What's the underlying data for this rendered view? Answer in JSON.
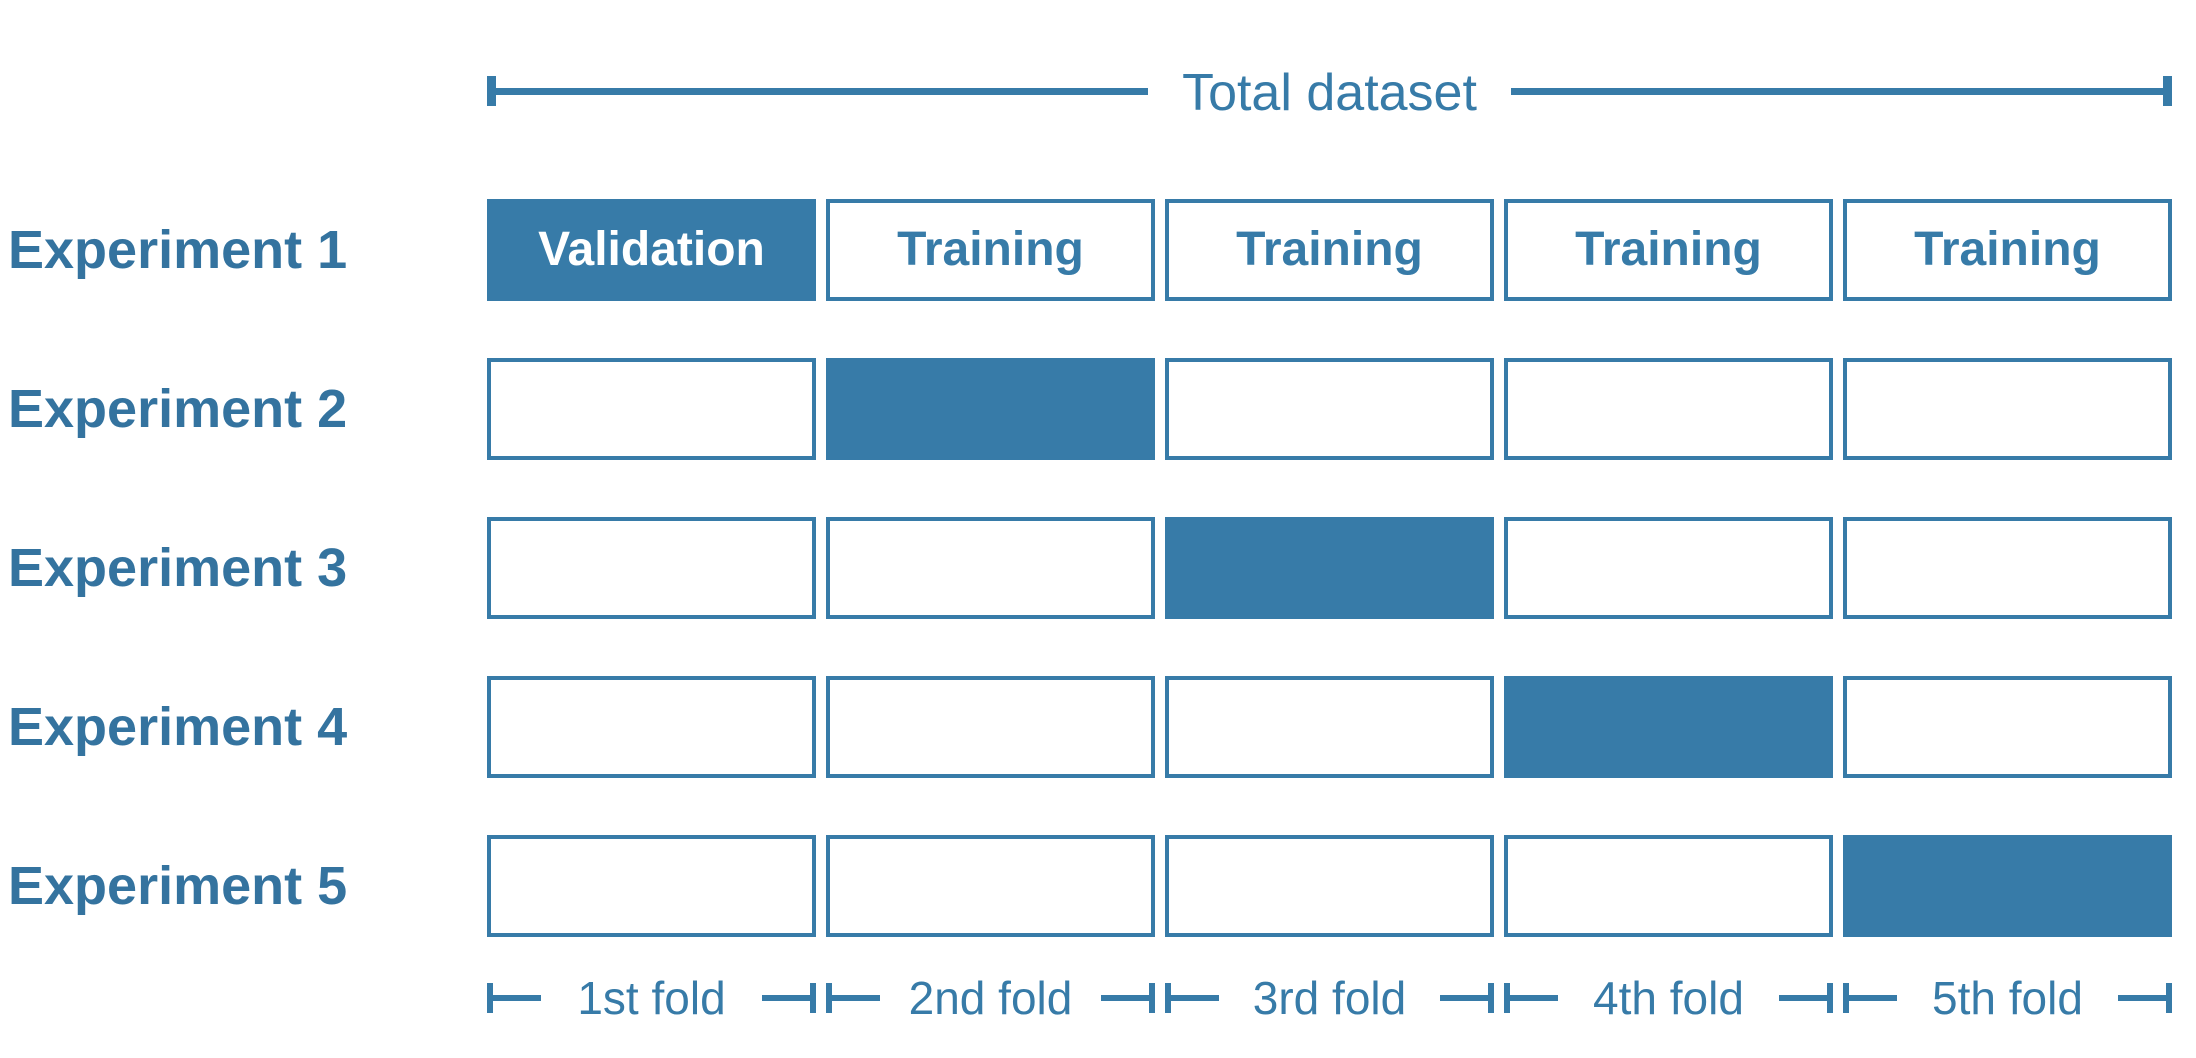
{
  "colors": {
    "accent": "#377BA8",
    "experiment_label_text": "#34739F",
    "validation_cell_text": "#FFFFFF",
    "background": "#FFFFFF"
  },
  "total_dataset": {
    "label": "Total dataset"
  },
  "experiments": [
    {
      "label": "Experiment 1",
      "cells": [
        {
          "state": "filled",
          "label": "Validation"
        },
        {
          "state": "empty",
          "label": "Training"
        },
        {
          "state": "empty",
          "label": "Training"
        },
        {
          "state": "empty",
          "label": "Training"
        },
        {
          "state": "empty",
          "label": "Training"
        }
      ]
    },
    {
      "label": "Experiment 2",
      "cells": [
        {
          "state": "empty",
          "label": ""
        },
        {
          "state": "filled",
          "label": ""
        },
        {
          "state": "empty",
          "label": ""
        },
        {
          "state": "empty",
          "label": ""
        },
        {
          "state": "empty",
          "label": ""
        }
      ]
    },
    {
      "label": "Experiment 3",
      "cells": [
        {
          "state": "empty",
          "label": ""
        },
        {
          "state": "empty",
          "label": ""
        },
        {
          "state": "filled",
          "label": ""
        },
        {
          "state": "empty",
          "label": ""
        },
        {
          "state": "empty",
          "label": ""
        }
      ]
    },
    {
      "label": "Experiment 4",
      "cells": [
        {
          "state": "empty",
          "label": ""
        },
        {
          "state": "empty",
          "label": ""
        },
        {
          "state": "empty",
          "label": ""
        },
        {
          "state": "filled",
          "label": ""
        },
        {
          "state": "empty",
          "label": ""
        }
      ]
    },
    {
      "label": "Experiment 5",
      "cells": [
        {
          "state": "empty",
          "label": ""
        },
        {
          "state": "empty",
          "label": ""
        },
        {
          "state": "empty",
          "label": ""
        },
        {
          "state": "empty",
          "label": ""
        },
        {
          "state": "filled",
          "label": ""
        }
      ]
    }
  ],
  "folds": [
    {
      "label": "1st fold"
    },
    {
      "label": "2nd fold"
    },
    {
      "label": "3rd fold"
    },
    {
      "label": "4th fold"
    },
    {
      "label": "5th fold"
    }
  ]
}
